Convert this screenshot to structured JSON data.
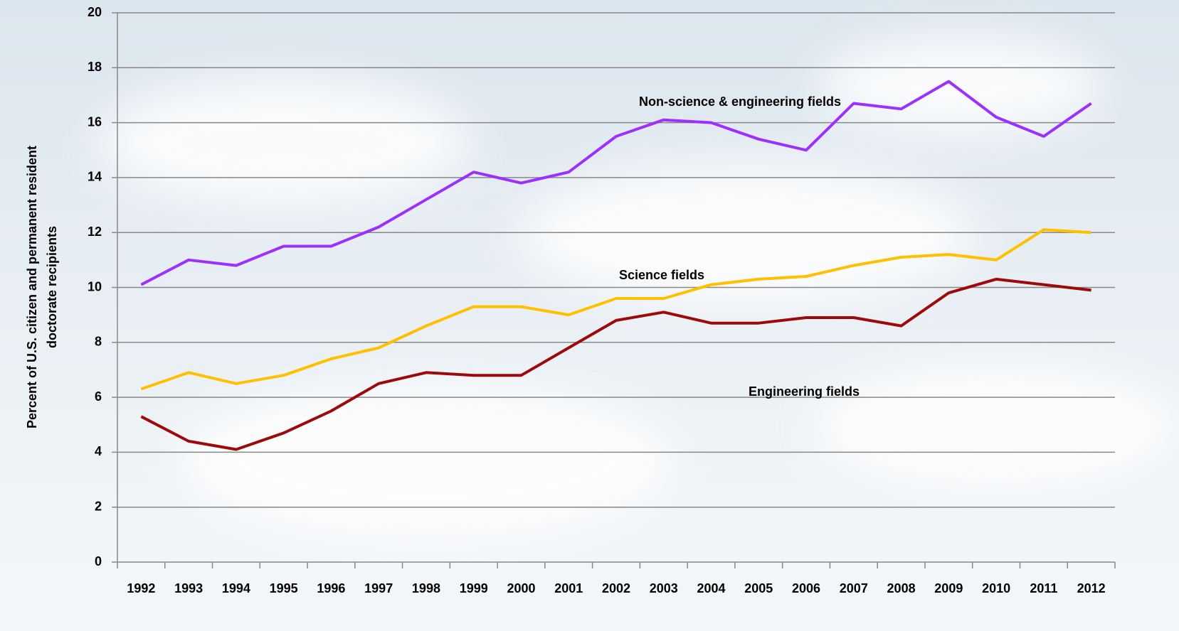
{
  "chart_data": {
    "type": "line",
    "y_label": [
      "Percent of U.S. citizen and permanent resident",
      "doctorate recipients"
    ],
    "categories": [
      "1992",
      "1993",
      "1994",
      "1995",
      "1996",
      "1997",
      "1998",
      "1999",
      "2000",
      "2001",
      "2002",
      "2003",
      "2004",
      "2005",
      "2006",
      "2007",
      "2008",
      "2009",
      "2010",
      "2011",
      "2012"
    ],
    "series": [
      {
        "name": "Non-science & engineering fields",
        "color": "#9b30ff",
        "values": [
          10.1,
          11.0,
          10.8,
          11.5,
          11.5,
          12.2,
          13.2,
          14.2,
          13.8,
          14.2,
          15.5,
          16.1,
          16.0,
          15.4,
          15.0,
          16.7,
          16.5,
          17.5,
          16.2,
          15.5,
          16.7
        ]
      },
      {
        "name": "Science fields",
        "color": "#ffc000",
        "values": [
          6.3,
          6.9,
          6.5,
          6.8,
          7.4,
          7.8,
          8.6,
          9.3,
          9.3,
          9.0,
          9.6,
          9.6,
          10.1,
          10.3,
          10.4,
          10.8,
          11.1,
          11.2,
          11.0,
          12.1,
          12.0
        ]
      },
      {
        "name": "Engineering fields",
        "color": "#9c0a0a",
        "values": [
          5.3,
          4.4,
          4.1,
          4.7,
          5.5,
          6.5,
          6.9,
          6.8,
          6.8,
          7.8,
          8.8,
          9.1,
          8.7,
          8.7,
          8.9,
          8.9,
          8.6,
          9.8,
          10.3,
          10.1,
          9.9
        ]
      }
    ],
    "ylim": [
      0,
      20
    ],
    "yticks": [
      0,
      2,
      4,
      6,
      8,
      10,
      12,
      14,
      16,
      18,
      20
    ],
    "grid": true
  }
}
